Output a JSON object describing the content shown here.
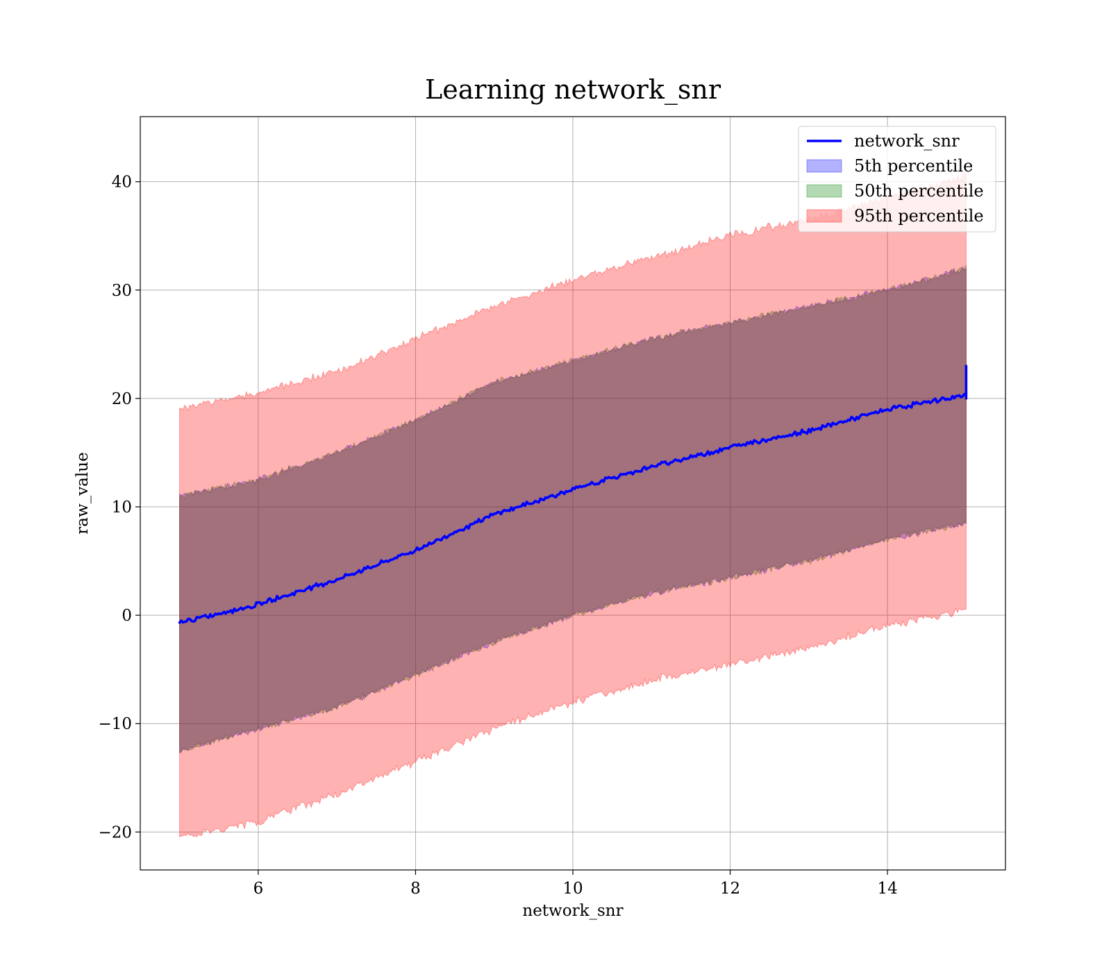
{
  "chart_data": {
    "type": "area",
    "title": "Learning network_snr",
    "xlabel": "network_snr",
    "ylabel": "raw_value",
    "xlim": [
      4.5,
      15.5
    ],
    "ylim": [
      -23.5,
      46
    ],
    "xticks": [
      6,
      8,
      10,
      12,
      14
    ],
    "yticks": [
      -20,
      -10,
      0,
      10,
      20,
      30,
      40
    ],
    "xtick_labels": [
      "6",
      "8",
      "10",
      "12",
      "14"
    ],
    "ytick_labels": [
      "−20",
      "−10",
      "0",
      "10",
      "20",
      "30",
      "40"
    ],
    "grid": true,
    "legend": "top-right",
    "x": [
      5,
      6,
      7,
      8,
      9,
      10,
      11,
      12,
      13,
      14,
      15
    ],
    "series": [
      {
        "name": "network_snr",
        "kind": "line",
        "color": "#0000ff",
        "values": [
          -0.7,
          1.0,
          3.3,
          6.0,
          9.3,
          11.6,
          13.7,
          15.5,
          17.0,
          19.0,
          20.3
        ]
      },
      {
        "name": "5th percentile",
        "kind": "band",
        "color": "#0000ff",
        "lower": [
          -12.5,
          -10.5,
          -8.5,
          -5.5,
          -2.5,
          0.0,
          2.0,
          3.5,
          5.0,
          7.0,
          8.5
        ],
        "upper": [
          11.0,
          12.5,
          15.0,
          18.0,
          21.5,
          23.5,
          25.5,
          27.0,
          28.5,
          30.0,
          32.0
        ]
      },
      {
        "name": "50th percentile",
        "kind": "band",
        "color": "#008000",
        "lower": [
          -12.5,
          -10.5,
          -8.5,
          -5.5,
          -2.5,
          0.0,
          2.0,
          3.5,
          5.0,
          7.0,
          8.5
        ],
        "upper": [
          11.0,
          12.5,
          15.0,
          18.0,
          21.5,
          23.5,
          25.5,
          27.0,
          28.5,
          30.0,
          32.0
        ]
      },
      {
        "name": "95th percentile",
        "kind": "band",
        "color": "#ff0000",
        "lower": [
          -20.5,
          -19.0,
          -16.5,
          -13.5,
          -10.5,
          -8.0,
          -6.0,
          -4.5,
          -3.0,
          -1.0,
          0.5
        ],
        "upper": [
          19.0,
          20.5,
          22.5,
          25.5,
          28.5,
          31.0,
          33.0,
          35.0,
          36.5,
          38.5,
          40.5
        ]
      }
    ]
  }
}
